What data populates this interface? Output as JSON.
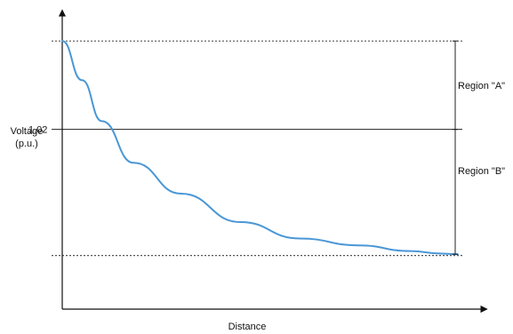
{
  "chart_data": {
    "type": "line",
    "title": "",
    "xlabel": "Distance",
    "ylabel_lines": [
      "Voltage",
      "(p.u.)"
    ],
    "y_ticks": [
      {
        "value": 1.02,
        "label": "1.02"
      }
    ],
    "ylim": [
      0.9915,
      1.0405
    ],
    "xlim": [
      0,
      1
    ],
    "grid": false,
    "legend": "none",
    "reference_lines": [
      {
        "value": 1.034,
        "style": "dashed"
      },
      {
        "value": 1.02,
        "style": "solid"
      },
      {
        "value": 1.0,
        "style": "dashed"
      }
    ],
    "series": [
      {
        "color": "#4a97d6",
        "x": [
          0.0,
          0.05,
          0.1,
          0.18,
          0.3,
          0.45,
          0.6,
          0.75,
          0.88,
          0.96,
          1.0
        ],
        "y": [
          1.034,
          1.0278,
          1.0213,
          1.0147,
          1.0098,
          1.0053,
          1.0027,
          1.0016,
          1.0007,
          1.0003,
          1.0002
        ]
      }
    ],
    "annotations": [
      {
        "text": "Region \"A\"",
        "from": 1.034,
        "to": 1.02
      },
      {
        "text": "Region \"B\"",
        "from": 1.02,
        "to": 1.0002
      }
    ]
  }
}
